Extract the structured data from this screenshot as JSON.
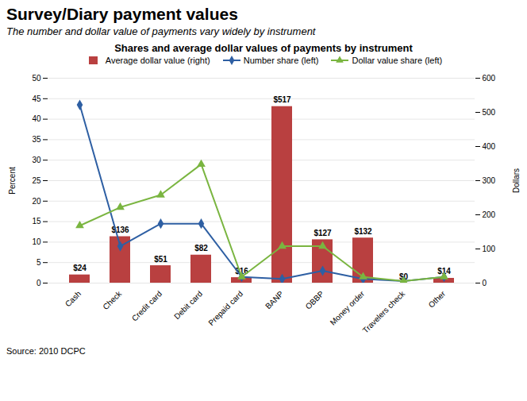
{
  "chart_data": {
    "type": "bar",
    "title": "Survey/Diary payment values",
    "subtitle": "The number and dollar value of payments vary widely by instrument",
    "chart_title": "Shares and average dollar values of payments by instrument",
    "source": "Source: 2010 DCPC",
    "categories": [
      "Cash",
      "Check",
      "Credit card",
      "Debit card",
      "Prepaid card",
      "BANP",
      "OBBP",
      "Money order",
      "Travelers check",
      "Other"
    ],
    "series": [
      {
        "name": "Average dollar value (right)",
        "type": "bar",
        "axis": "y2",
        "color": "#b94040",
        "values": [
          24,
          136,
          51,
          82,
          16,
          517,
          127,
          132,
          0,
          14
        ],
        "value_labels": [
          "$24",
          "$136",
          "$51",
          "$82",
          "$16",
          "$517",
          "$127",
          "$132",
          "$0",
          "$14"
        ]
      },
      {
        "name": "Number share (left)",
        "type": "line",
        "color": "#2e5fa3",
        "marker": "diamond",
        "values": [
          43.5,
          9.0,
          14.5,
          14.5,
          1.5,
          1.0,
          3.0,
          1.0,
          0.5,
          1.5
        ]
      },
      {
        "name": "Dollar value share (left)",
        "type": "line",
        "color": "#7ab540",
        "marker": "triangle",
        "values": [
          14.0,
          18.5,
          21.5,
          29.0,
          1.5,
          9.0,
          9.0,
          1.5,
          0.5,
          1.5
        ]
      }
    ],
    "ylabel": "Percent",
    "y2label": "Dollars",
    "ylim": [
      0,
      50
    ],
    "yticks": [
      0,
      5,
      10,
      15,
      20,
      25,
      30,
      35,
      40,
      45,
      50
    ],
    "y2lim": [
      0,
      600
    ],
    "y2ticks": [
      0,
      100,
      200,
      300,
      400,
      500,
      600
    ],
    "grid": true,
    "data_labels": true,
    "legend": "upper right"
  }
}
